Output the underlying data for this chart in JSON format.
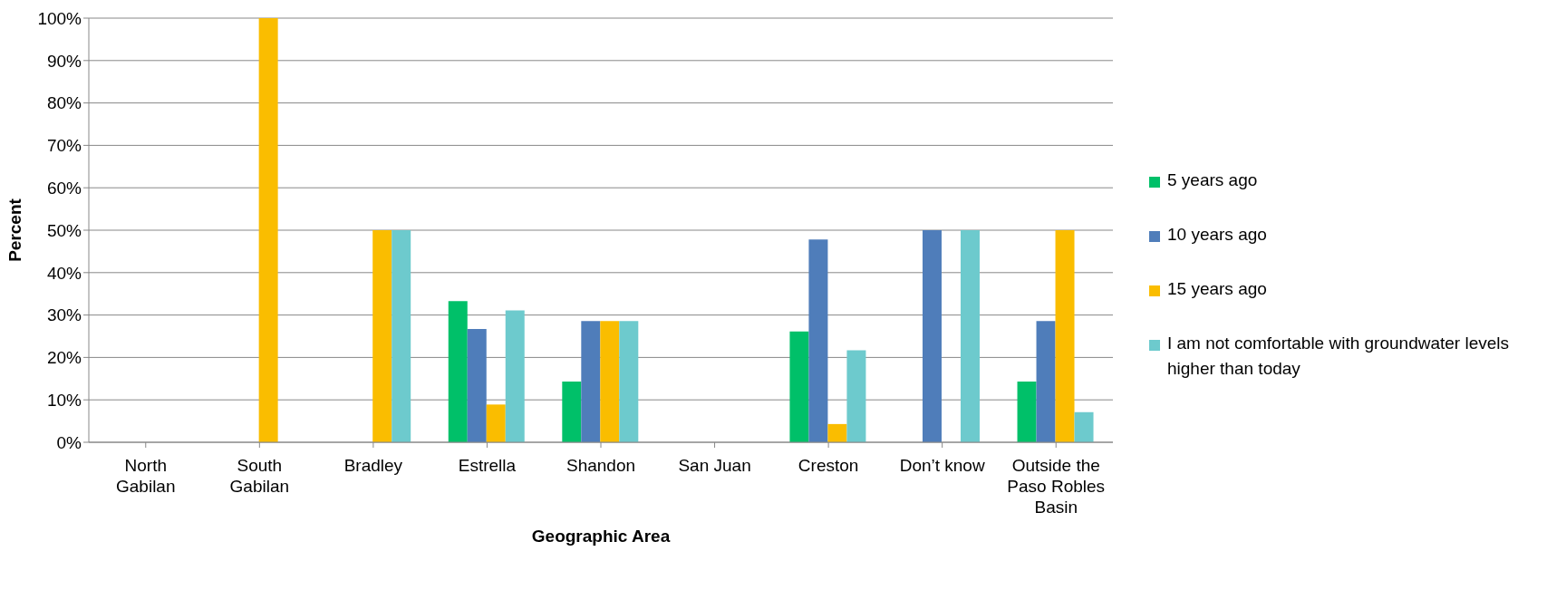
{
  "chart_data": {
    "type": "bar",
    "xlabel": "Geographic Area",
    "ylabel": "Percent",
    "categories": [
      "North Gabilan",
      "South Gabilan",
      "Bradley",
      "Estrella",
      "Shandon",
      "San Juan",
      "Creston",
      "Don’t know",
      "Outside the Paso Robles Basin"
    ],
    "series": [
      {
        "name": "5 years ago",
        "color": "#00c069",
        "values": [
          0,
          0,
          0,
          33.3,
          14.3,
          0,
          26.1,
          0,
          14.3
        ]
      },
      {
        "name": "10 years ago",
        "color": "#4f7dba",
        "values": [
          0,
          0,
          0,
          26.7,
          28.6,
          0,
          47.8,
          50,
          28.6
        ]
      },
      {
        "name": "15 years ago",
        "color": "#fabd00",
        "values": [
          0,
          100,
          50,
          8.9,
          28.6,
          0,
          4.3,
          0,
          50
        ]
      },
      {
        "name": "I am not comfortable with groundwater levels higher than today",
        "color": "#6dcacd",
        "values": [
          0,
          0,
          50,
          31.1,
          28.6,
          0,
          21.7,
          50,
          7.1
        ]
      }
    ],
    "ylim": [
      0,
      100
    ],
    "yticks": [
      {
        "value": 0,
        "label": "0%"
      },
      {
        "value": 10,
        "label": "10%"
      },
      {
        "value": 20,
        "label": "20%"
      },
      {
        "value": 30,
        "label": "30%"
      },
      {
        "value": 40,
        "label": "40%"
      },
      {
        "value": 50,
        "label": "50%"
      },
      {
        "value": 60,
        "label": "60%"
      },
      {
        "value": 70,
        "label": "70%"
      },
      {
        "value": 80,
        "label": "80%"
      },
      {
        "value": 90,
        "label": "90%"
      },
      {
        "value": 100,
        "label": "100%"
      }
    ],
    "grid": "y",
    "legend": "right"
  }
}
